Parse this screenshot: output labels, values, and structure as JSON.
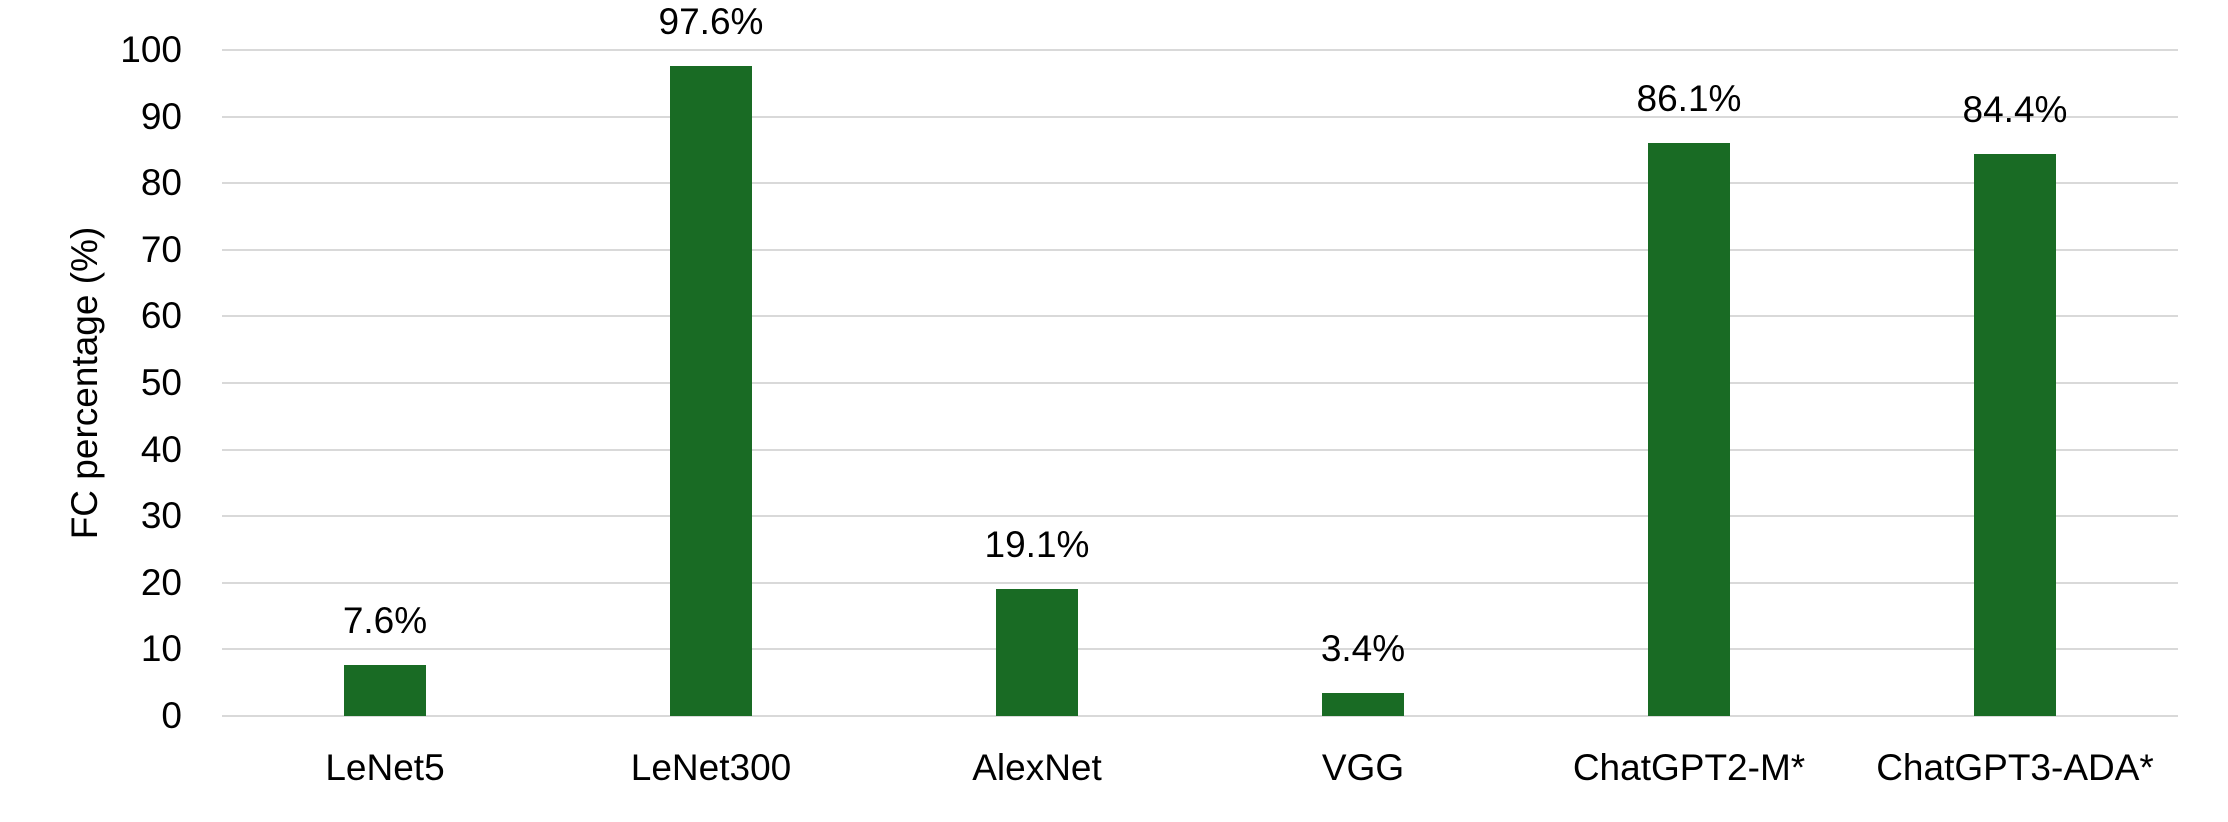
{
  "chart_data": {
    "type": "bar",
    "categories": [
      "LeNet5",
      "LeNet300",
      "AlexNet",
      "VGG",
      "ChatGPT2-M*",
      "ChatGPT3-ADA*"
    ],
    "values": [
      7.6,
      97.6,
      19.1,
      3.4,
      86.1,
      84.4
    ],
    "data_labels": [
      "7.6%",
      "97.6%",
      "19.1%",
      "3.4%",
      "86.1%",
      "84.4%"
    ],
    "title": "",
    "xlabel": "",
    "ylabel": "FC percentage (%)",
    "ylim": [
      0,
      100
    ],
    "yticks": [
      0,
      10,
      20,
      30,
      40,
      50,
      60,
      70,
      80,
      90,
      100
    ],
    "grid": true,
    "legend": "none",
    "bar_color": "#196B24",
    "gridline_color": "#D9D9D9",
    "text_color": "#000000",
    "background_color": "#FFFFFF"
  }
}
